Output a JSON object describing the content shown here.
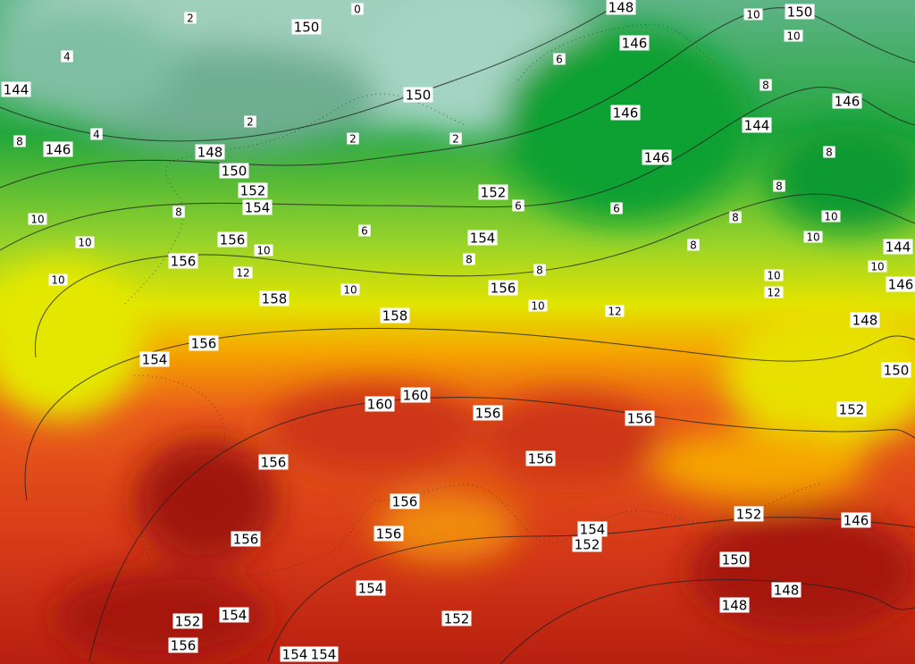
{
  "map": {
    "height_labels": [
      150,
      148,
      150,
      146,
      144,
      150,
      146,
      144,
      146,
      148,
      146,
      150,
      152,
      152,
      154,
      156,
      154,
      156,
      156,
      158,
      158,
      156,
      154,
      160,
      160,
      156,
      156,
      156,
      156,
      156,
      156,
      156,
      154,
      152,
      152,
      146,
      150,
      148,
      148,
      154,
      152,
      154,
      152,
      156,
      154,
      154,
      148,
      150,
      152,
      144,
      146,
      146
    ],
    "temperature_labels": [
      4,
      2,
      8,
      10,
      10,
      10,
      12,
      10,
      10,
      10,
      12,
      10,
      12,
      10,
      10,
      6,
      8,
      8,
      4,
      2,
      2,
      8,
      6,
      8,
      6,
      8,
      8,
      10,
      10,
      10,
      8,
      8,
      6,
      2,
      0
    ]
  }
}
